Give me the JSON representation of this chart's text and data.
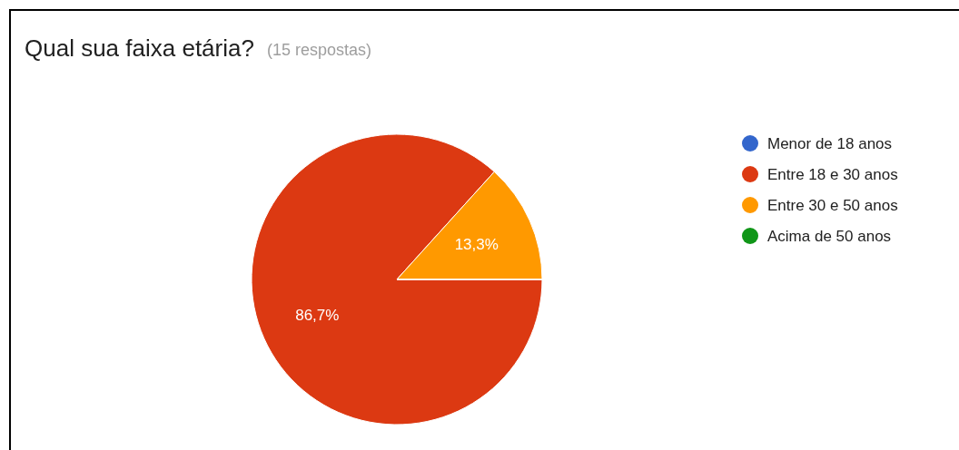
{
  "chart_data": {
    "type": "pie",
    "title": "Qual sua faixa etária?",
    "subtitle": "(15 respostas)",
    "categories": [
      "Menor de 18 anos",
      "Entre 18 e 30 anos",
      "Entre 30 e 50 anos",
      "Acima de 50 anos"
    ],
    "values": [
      0,
      86.7,
      13.3,
      0
    ],
    "colors": [
      "#3366cc",
      "#dc3912",
      "#ff9900",
      "#109618"
    ],
    "value_labels": [
      null,
      "86,7%",
      "13,3%",
      null
    ],
    "legend": "right"
  }
}
